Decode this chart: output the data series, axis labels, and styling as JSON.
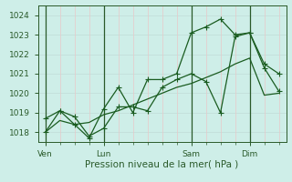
{
  "bg_color": "#ceeee8",
  "grid_color_h": "#c0dcd8",
  "grid_color_v_minor": "#e8c8c8",
  "grid_color_v_major": "#c0dcd8",
  "line_color": "#1a5c20",
  "marker_color": "#1a5c20",
  "xlabel": "Pression niveau de la mer( hPa )",
  "ylim": [
    1017.5,
    1024.5
  ],
  "yticks": [
    1018,
    1019,
    1020,
    1021,
    1022,
    1023,
    1024
  ],
  "day_labels": [
    "Ven",
    "Lun",
    "Sam",
    "Dim"
  ],
  "day_positions": [
    0,
    4,
    10,
    14
  ],
  "n_points": 17,
  "series1_x": [
    0,
    1,
    2,
    3,
    4,
    5,
    6,
    7,
    8,
    9,
    10,
    11,
    12,
    13,
    14,
    15,
    16
  ],
  "series1_y": [
    1018.7,
    1019.1,
    1018.8,
    1017.8,
    1018.2,
    1019.3,
    1019.3,
    1019.1,
    1020.3,
    1020.7,
    1021.0,
    1020.6,
    1019.0,
    1022.9,
    1023.1,
    1021.5,
    1021.0
  ],
  "series2_x": [
    0,
    1,
    2,
    3,
    4,
    5,
    6,
    7,
    8,
    9,
    10,
    11,
    12,
    13,
    14,
    15,
    16
  ],
  "series2_y": [
    1018.0,
    1018.6,
    1018.4,
    1018.5,
    1018.9,
    1019.1,
    1019.4,
    1019.7,
    1020.0,
    1020.3,
    1020.5,
    1020.8,
    1021.1,
    1021.5,
    1021.8,
    1019.9,
    1020.0
  ],
  "series3_x": [
    0,
    1,
    2,
    3,
    4,
    5,
    6,
    7,
    8,
    9,
    10,
    11,
    12,
    13,
    14,
    15,
    16
  ],
  "series3_y": [
    1018.0,
    1019.1,
    1018.4,
    1017.7,
    1019.2,
    1020.3,
    1019.0,
    1020.7,
    1020.7,
    1021.0,
    1023.1,
    1023.4,
    1023.8,
    1023.0,
    1023.1,
    1021.3,
    1020.1
  ],
  "vline_color": "#2a5a2a",
  "xlabel_fontsize": 7.5,
  "tick_fontsize": 6.5,
  "linewidth": 0.9,
  "markersize": 2.2
}
